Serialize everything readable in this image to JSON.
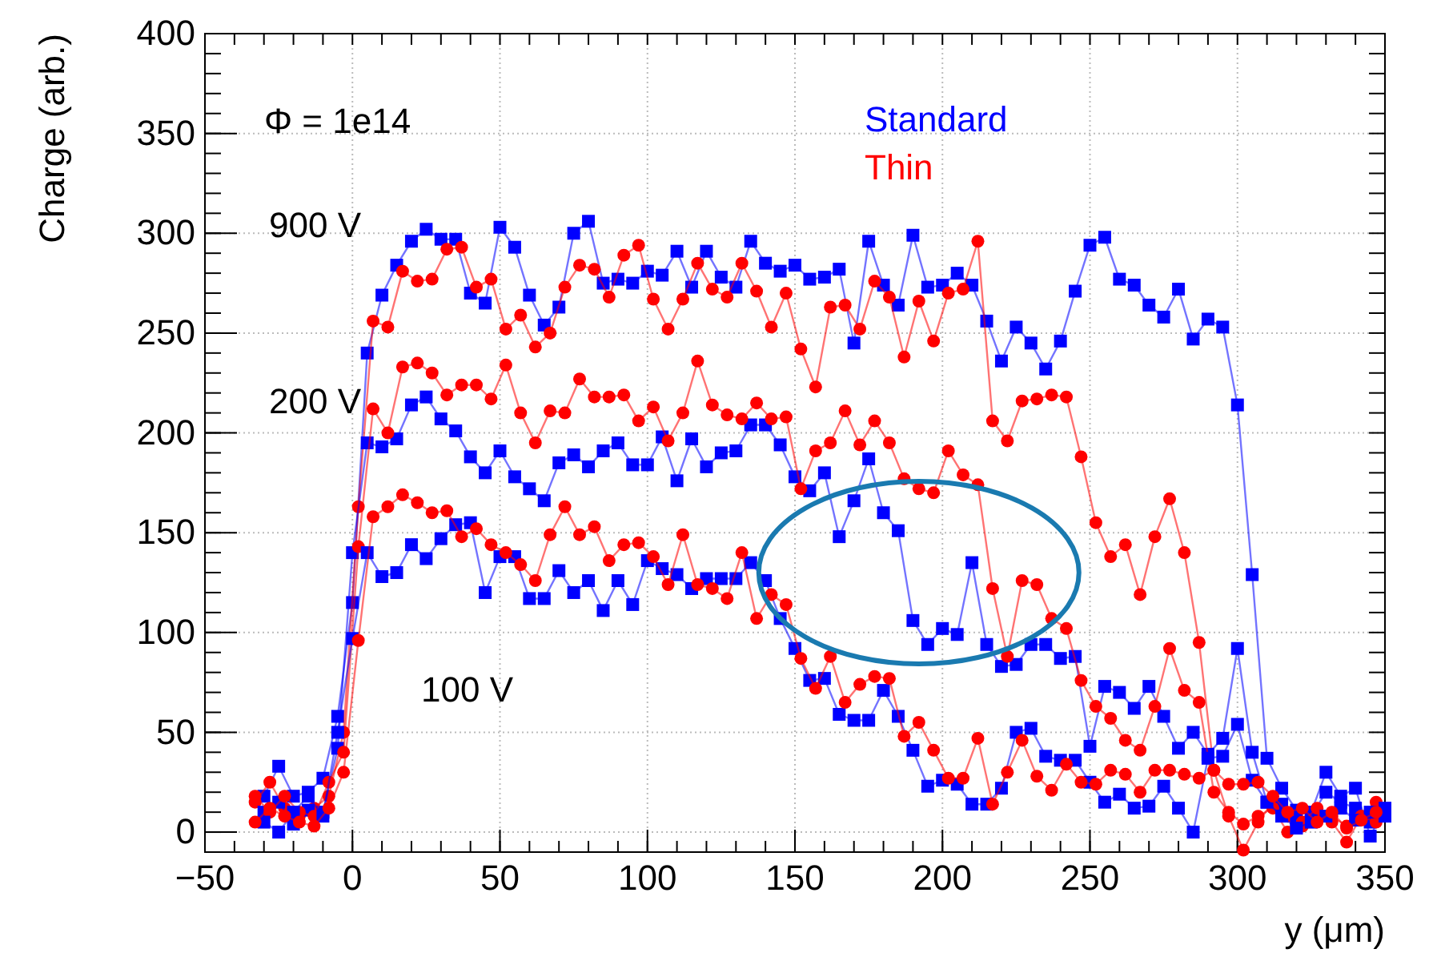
{
  "chart_data": {
    "type": "line",
    "xlabel": "y (μm)",
    "ylabel": "Charge (arb.)",
    "xlim": [
      -50,
      350
    ],
    "xticks": [
      {
        "value": -50,
        "label": "−50"
      },
      0,
      50,
      100,
      150,
      200,
      250,
      300,
      350
    ],
    "ylim": [
      -10,
      400
    ],
    "yticks": [
      0,
      50,
      100,
      150,
      200,
      250,
      300,
      350,
      400
    ],
    "grid": true,
    "legend": "top",
    "line_style": "solid",
    "annotations": [
      "Φ = 1e14",
      "900 V",
      "200 V",
      "100 V"
    ],
    "series": [
      {
        "name": "Standard",
        "color": "#0000ff",
        "marker": "square",
        "x": [
          -30,
          -25,
          -20,
          -15,
          -10,
          -5,
          0,
          5,
          10,
          15,
          20,
          25,
          30,
          35,
          40,
          45,
          50,
          55,
          60,
          65,
          70,
          75,
          80,
          85,
          90,
          95,
          100,
          105,
          110,
          115,
          120,
          125,
          130,
          135,
          140,
          145,
          150,
          155,
          160,
          165,
          170,
          175,
          180,
          185,
          190,
          195,
          200,
          205,
          210,
          215,
          220,
          225,
          230,
          235,
          240,
          245,
          250,
          255,
          260,
          265,
          270,
          275,
          280,
          285,
          290,
          295,
          300,
          305,
          310,
          315,
          320,
          325,
          330,
          335,
          340,
          345,
          350
        ],
        "values": [
          18,
          33,
          18,
          20,
          27,
          58,
          115,
          240,
          269,
          284,
          296,
          302,
          297,
          297,
          270,
          265,
          303,
          293,
          269,
          254,
          263,
          300,
          306,
          275,
          277,
          275,
          281,
          279,
          291,
          273,
          291,
          278,
          273,
          296,
          285,
          281,
          284,
          277,
          278,
          282,
          245,
          296,
          274,
          264,
          299,
          273,
          274,
          280,
          274,
          256,
          236,
          253,
          245,
          232,
          246,
          271,
          294,
          298,
          277,
          274,
          264,
          258,
          272,
          247,
          257,
          253,
          214,
          129,
          37,
          22,
          11,
          8,
          20,
          15,
          12,
          5,
          10
        ]
      },
      {
        "name": "Thin",
        "color": "#ff0000",
        "marker": "circle",
        "x": [
          -33,
          -28,
          -23,
          -18,
          -13,
          -8,
          -3,
          2,
          7,
          12,
          17,
          22,
          27,
          32,
          37,
          42,
          47,
          52,
          57,
          62,
          67,
          72,
          77,
          82,
          87,
          92,
          97,
          102,
          107,
          112,
          117,
          122,
          127,
          132,
          137,
          142,
          147,
          152,
          157,
          162,
          167,
          172,
          177,
          182,
          187,
          192,
          197,
          202,
          207,
          212,
          217,
          222,
          227,
          232,
          237,
          242,
          247,
          252,
          257,
          262,
          267,
          272,
          277,
          282,
          287,
          292,
          297,
          302,
          307,
          312,
          317,
          322,
          327,
          332,
          337,
          342,
          347
        ],
        "values": [
          15,
          25,
          12,
          8,
          12,
          18,
          50,
          163,
          256,
          253,
          281,
          276,
          277,
          292,
          293,
          273,
          277,
          252,
          259,
          243,
          250,
          273,
          284,
          282,
          268,
          289,
          294,
          267,
          252,
          267,
          285,
          272,
          268,
          285,
          271,
          253,
          270,
          242,
          223,
          263,
          264,
          252,
          276,
          268,
          238,
          266,
          246,
          270,
          272,
          296,
          206,
          196,
          216,
          217,
          219,
          218,
          188,
          155,
          138,
          144,
          119,
          148,
          167,
          140,
          95,
          31,
          8,
          -9,
          5,
          15,
          8,
          3,
          10,
          5,
          -5,
          8,
          15
        ]
      },
      {
        "color": "#0000ff",
        "marker": "square",
        "x": [
          -30,
          -25,
          -20,
          -15,
          -10,
          -5,
          0,
          5,
          10,
          15,
          20,
          25,
          30,
          35,
          40,
          45,
          50,
          55,
          60,
          65,
          70,
          75,
          80,
          85,
          90,
          95,
          100,
          105,
          110,
          115,
          120,
          125,
          130,
          135,
          140,
          145,
          150,
          155,
          160,
          165,
          170,
          175,
          180,
          185,
          190,
          195,
          200,
          205,
          210,
          215,
          220,
          225,
          230,
          235,
          240,
          245,
          250,
          255,
          260,
          265,
          270,
          275,
          280,
          285,
          290,
          295,
          300,
          305,
          310,
          315,
          320,
          325,
          330,
          335,
          340,
          345,
          350
        ],
        "values": [
          10,
          15,
          4,
          11,
          10,
          42,
          140,
          195,
          193,
          197,
          214,
          218,
          207,
          201,
          188,
          180,
          191,
          178,
          172,
          166,
          185,
          189,
          183,
          191,
          195,
          184,
          184,
          198,
          176,
          197,
          183,
          190,
          191,
          204,
          204,
          194,
          178,
          171,
          180,
          148,
          166,
          187,
          160,
          151,
          106,
          94,
          102,
          99,
          135,
          94,
          83,
          84,
          94,
          94,
          87,
          88,
          43,
          73,
          70,
          62,
          73,
          58,
          42,
          50,
          39,
          47,
          92,
          40,
          15,
          14,
          5,
          10,
          30,
          18,
          22,
          -2,
          12
        ]
      },
      {
        "color": "#ff0000",
        "marker": "circle",
        "x": [
          -33,
          -28,
          -23,
          -18,
          -13,
          -8,
          -3,
          2,
          7,
          12,
          17,
          22,
          27,
          32,
          37,
          42,
          47,
          52,
          57,
          62,
          67,
          72,
          77,
          82,
          87,
          92,
          97,
          102,
          107,
          112,
          117,
          122,
          127,
          132,
          137,
          142,
          147,
          152,
          157,
          162,
          167,
          172,
          177,
          182,
          187,
          192,
          197,
          202,
          207,
          212,
          217,
          222,
          227,
          232,
          237,
          242,
          247,
          252,
          257,
          262,
          267,
          272,
          277,
          282,
          287,
          292,
          297,
          302,
          307,
          312,
          317,
          322,
          327,
          332,
          337,
          342,
          347
        ],
        "values": [
          18,
          10,
          18,
          10,
          8,
          25,
          40,
          143,
          212,
          200,
          233,
          235,
          230,
          219,
          224,
          224,
          217,
          234,
          210,
          195,
          211,
          210,
          227,
          218,
          218,
          219,
          206,
          213,
          196,
          210,
          236,
          214,
          209,
          207,
          215,
          207,
          208,
          172,
          191,
          195,
          211,
          194,
          206,
          195,
          177,
          172,
          170,
          191,
          179,
          174,
          122,
          88,
          126,
          124,
          107,
          102,
          76,
          63,
          57,
          46,
          41,
          63,
          92,
          71,
          65,
          20,
          10,
          4,
          8,
          12,
          0,
          5,
          12,
          8,
          3,
          8,
          5
        ]
      },
      {
        "color": "#0000ff",
        "marker": "square",
        "x": [
          -30,
          -25,
          -20,
          -15,
          -10,
          -5,
          0,
          5,
          10,
          15,
          20,
          25,
          30,
          35,
          40,
          45,
          50,
          55,
          60,
          65,
          70,
          75,
          80,
          85,
          90,
          95,
          100,
          105,
          110,
          115,
          120,
          125,
          130,
          135,
          140,
          145,
          150,
          155,
          160,
          165,
          170,
          175,
          180,
          185,
          190,
          195,
          200,
          205,
          210,
          215,
          220,
          225,
          230,
          235,
          240,
          245,
          250,
          255,
          260,
          265,
          270,
          275,
          280,
          285,
          290,
          295,
          300,
          305,
          310,
          315,
          320,
          325,
          330,
          335,
          340,
          345,
          350
        ],
        "values": [
          5,
          0,
          10,
          18,
          8,
          50,
          97,
          140,
          128,
          130,
          144,
          137,
          147,
          154,
          155,
          120,
          138,
          138,
          117,
          117,
          131,
          120,
          126,
          111,
          126,
          114,
          136,
          132,
          129,
          122,
          127,
          127,
          127,
          135,
          126,
          107,
          92,
          76,
          77,
          59,
          56,
          56,
          71,
          58,
          41,
          23,
          26,
          24,
          14,
          14,
          22,
          50,
          52,
          38,
          36,
          36,
          25,
          15,
          19,
          12,
          13,
          23,
          12,
          0,
          37,
          38,
          54,
          26,
          15,
          8,
          2,
          5,
          8,
          12,
          6,
          10,
          8
        ]
      },
      {
        "color": "#ff0000",
        "marker": "circle",
        "x": [
          -33,
          -28,
          -23,
          -18,
          -13,
          -8,
          -3,
          2,
          7,
          12,
          17,
          22,
          27,
          32,
          37,
          42,
          47,
          52,
          57,
          62,
          67,
          72,
          77,
          82,
          87,
          92,
          97,
          102,
          107,
          112,
          117,
          122,
          127,
          132,
          137,
          142,
          147,
          152,
          157,
          162,
          167,
          172,
          177,
          182,
          187,
          192,
          197,
          202,
          207,
          212,
          217,
          222,
          227,
          232,
          237,
          242,
          247,
          252,
          257,
          262,
          267,
          272,
          277,
          282,
          287,
          292,
          297,
          302,
          307,
          312,
          317,
          322,
          327,
          332,
          337,
          342,
          347
        ],
        "values": [
          5,
          12,
          8,
          5,
          3,
          12,
          30,
          96,
          158,
          163,
          169,
          165,
          160,
          161,
          148,
          152,
          144,
          140,
          134,
          126,
          149,
          163,
          149,
          153,
          136,
          144,
          145,
          138,
          124,
          149,
          124,
          122,
          117,
          140,
          107,
          119,
          114,
          87,
          72,
          88,
          65,
          74,
          78,
          77,
          48,
          55,
          41,
          27,
          27,
          47,
          14,
          30,
          46,
          28,
          21,
          34,
          25,
          24,
          31,
          29,
          20,
          31,
          31,
          29,
          27,
          31,
          24,
          24,
          25,
          18,
          10,
          12,
          5,
          10,
          2,
          6,
          10
        ]
      }
    ]
  }
}
